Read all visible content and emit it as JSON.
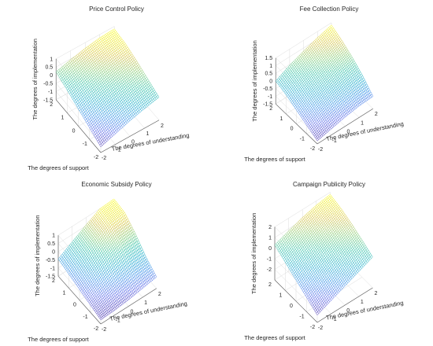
{
  "chart_data": [
    {
      "type": "surface",
      "title": "Price Control Policy",
      "xlabel": "The degrees of understanding",
      "ylabel": "The degrees of support",
      "zlabel": "The degrees of implementation",
      "xlim": [
        -2,
        2
      ],
      "ylim": [
        -2,
        2
      ],
      "zlim": [
        -1.5,
        1
      ],
      "xticks": [
        -2,
        -1,
        0,
        1,
        2
      ],
      "yticks": [
        -2,
        -1,
        0,
        1,
        2
      ],
      "zticks": [
        -1.5,
        -1,
        -0.5,
        0,
        0.5,
        1
      ],
      "x": [
        -2,
        -1,
        0,
        1,
        2
      ],
      "y": [
        -2,
        -1,
        0,
        1,
        2
      ],
      "z": [
        [
          -1.15,
          -0.85,
          -0.55,
          -0.3,
          -0.1
        ],
        [
          -0.8,
          -0.5,
          -0.25,
          0.0,
          0.2
        ],
        [
          -0.45,
          -0.15,
          0.1,
          0.3,
          0.5
        ],
        [
          -0.1,
          0.15,
          0.4,
          0.6,
          0.75
        ],
        [
          0.2,
          0.45,
          0.65,
          0.8,
          0.85
        ]
      ]
    },
    {
      "type": "surface",
      "title": "Fee Collection Policy",
      "xlabel": "The degrees of understanding",
      "ylabel": "The degrees of support",
      "zlabel": "The degrees of implementation",
      "xlim": [
        -2,
        2
      ],
      "ylim": [
        -2,
        2
      ],
      "zlim": [
        -1.5,
        1.5
      ],
      "xticks": [
        -2,
        -1,
        0,
        1,
        2
      ],
      "yticks": [
        -2,
        -1,
        0,
        1,
        2
      ],
      "zticks": [
        -1.5,
        -1,
        -0.5,
        0,
        0.5,
        1,
        1.5
      ],
      "x": [
        -2,
        -1,
        0,
        1,
        2
      ],
      "y": [
        -2,
        -1,
        0,
        1,
        2
      ],
      "z": [
        [
          -1.3,
          -1.1,
          -0.9,
          -0.75,
          -0.7
        ],
        [
          -0.95,
          -0.6,
          -0.35,
          -0.15,
          0.0
        ],
        [
          -0.6,
          -0.2,
          0.1,
          0.35,
          0.55
        ],
        [
          -0.25,
          0.15,
          0.45,
          0.75,
          1.0
        ],
        [
          0.0,
          0.45,
          0.8,
          1.1,
          1.35
        ]
      ]
    },
    {
      "type": "surface",
      "title": "Economic Subsidy Policy",
      "xlabel": "The degrees of understanding",
      "ylabel": "The degrees of support",
      "zlabel": "The degrees of implementation",
      "xlim": [
        -2,
        2
      ],
      "ylim": [
        -2,
        2
      ],
      "zlim": [
        -1.5,
        1
      ],
      "xticks": [
        -2,
        -1,
        0,
        1,
        2
      ],
      "yticks": [
        -2,
        -1,
        0,
        1,
        2
      ],
      "zticks": [
        -1.5,
        -1,
        -0.5,
        0,
        0.5,
        1
      ],
      "x": [
        -2,
        -1,
        0,
        1,
        2
      ],
      "y": [
        -2,
        -1,
        0,
        1,
        2
      ],
      "z": [
        [
          -1.25,
          -1.2,
          -1.1,
          -0.95,
          -0.8
        ],
        [
          -1.05,
          -0.8,
          -0.55,
          -0.35,
          -0.3
        ],
        [
          -0.85,
          -0.4,
          0.05,
          0.35,
          0.4
        ],
        [
          -0.65,
          -0.1,
          0.45,
          0.85,
          0.95
        ],
        [
          -0.45,
          0.05,
          0.55,
          1.0,
          1.05
        ]
      ]
    },
    {
      "type": "surface",
      "title": "Campaign Publicity Policy",
      "xlabel": "The degrees of understanding",
      "ylabel": "The degrees of support",
      "zlabel": "The degrees of implementation",
      "xlim": [
        -2,
        2
      ],
      "ylim": [
        -2,
        2
      ],
      "zlim": [
        -3,
        2
      ],
      "xticks": [
        -2,
        -1,
        0,
        1,
        2
      ],
      "yticks": [
        -2,
        -1,
        0,
        1,
        2
      ],
      "zticks": [
        -2,
        -1,
        0,
        1,
        2
      ],
      "x": [
        -2,
        -1,
        0,
        1,
        2
      ],
      "y": [
        -2,
        -1,
        0,
        1,
        2
      ],
      "z": [
        [
          -2.3,
          -1.75,
          -1.2,
          -0.65,
          -0.1
        ],
        [
          -1.65,
          -1.1,
          -0.55,
          0.0,
          0.5
        ],
        [
          -1.0,
          -0.45,
          0.1,
          0.6,
          1.05
        ],
        [
          -0.35,
          0.2,
          0.7,
          1.15,
          1.5
        ],
        [
          0.3,
          0.8,
          1.25,
          1.6,
          1.8
        ]
      ]
    }
  ]
}
